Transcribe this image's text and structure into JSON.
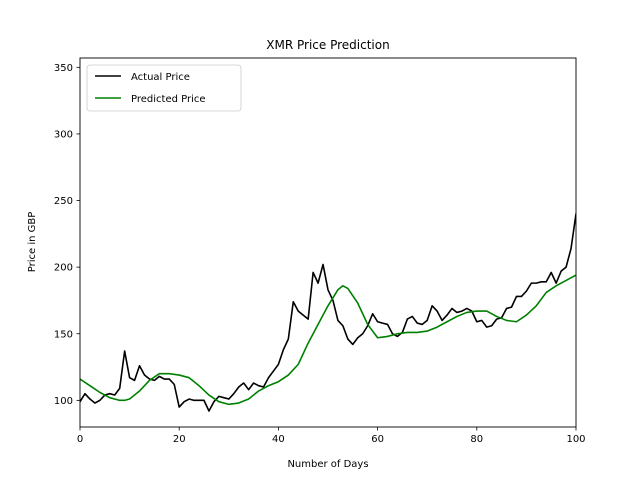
{
  "chart_data": {
    "type": "line",
    "title": "XMR Price Prediction",
    "xlabel": "Number of Days",
    "ylabel": "Price in GBP",
    "xlim": [
      0,
      100
    ],
    "ylim": [
      80,
      357
    ],
    "xticks": [
      0,
      20,
      40,
      60,
      80,
      100
    ],
    "yticks": [
      100,
      150,
      200,
      250,
      300,
      350
    ],
    "grid": false,
    "legend_position": "top-left",
    "series": [
      {
        "name": "Actual Price",
        "color": "#000000",
        "x": [
          0,
          1,
          2,
          3,
          4,
          5,
          6,
          7,
          8,
          9,
          10,
          11,
          12,
          13,
          14,
          15,
          16,
          17,
          18,
          19,
          20,
          21,
          22,
          23,
          24,
          25,
          26,
          27,
          28,
          29,
          30,
          31,
          32,
          33,
          34,
          35,
          36,
          37,
          38,
          39,
          40,
          41,
          42,
          43,
          44,
          45,
          46,
          47,
          48,
          49,
          50,
          51,
          52,
          53,
          54,
          55,
          56,
          57,
          58,
          59,
          60,
          61,
          62,
          63,
          64,
          65,
          66,
          67,
          68,
          69,
          70,
          71,
          72,
          73,
          74,
          75,
          76,
          77,
          78,
          79,
          80,
          81,
          82,
          83,
          84,
          85,
          86,
          87,
          88,
          89,
          90,
          91,
          92,
          93,
          94,
          95,
          96,
          97,
          98,
          99,
          100
        ],
        "y": [
          99,
          105,
          101,
          98,
          100,
          104,
          105,
          104,
          109,
          137,
          117,
          115,
          126,
          119,
          116,
          115,
          118,
          116,
          116,
          112,
          95,
          99,
          101,
          100,
          100,
          100,
          92,
          99,
          103,
          102,
          101,
          105,
          110,
          113,
          108,
          113,
          111,
          110,
          117,
          122,
          127,
          138,
          146,
          174,
          167,
          164,
          161,
          196,
          188,
          202,
          183,
          175,
          160,
          156,
          146,
          142,
          147,
          150,
          156,
          165,
          159,
          158,
          157,
          150,
          148,
          151,
          161,
          163,
          158,
          157,
          160,
          171,
          167,
          160,
          164,
          169,
          166,
          167,
          169,
          167,
          159,
          160,
          155,
          156,
          161,
          162,
          169,
          170,
          178,
          178,
          182,
          188,
          188,
          189,
          189,
          196,
          188,
          197,
          200,
          214,
          240
        ]
      },
      {
        "name": "Predicted Price",
        "color": "#008000",
        "x": [
          0,
          2,
          4,
          6,
          8,
          9,
          10,
          12,
          14,
          16,
          18,
          20,
          22,
          24,
          26,
          28,
          30,
          32,
          34,
          36,
          38,
          40,
          42,
          44,
          46,
          48,
          50,
          52,
          53,
          54,
          56,
          58,
          60,
          62,
          64,
          66,
          68,
          70,
          72,
          74,
          76,
          78,
          80,
          82,
          84,
          86,
          88,
          90,
          92,
          94,
          96,
          98,
          100
        ],
        "y": [
          116,
          111,
          106,
          102,
          100,
          100,
          101,
          107,
          115,
          120,
          120,
          119,
          117,
          111,
          104,
          99,
          97,
          98,
          101,
          107,
          111,
          114,
          119,
          127,
          143,
          157,
          171,
          183,
          186,
          184,
          173,
          157,
          147,
          148,
          150,
          151,
          151,
          152,
          155,
          159,
          163,
          166,
          167,
          167,
          163,
          160,
          159,
          164,
          171,
          181,
          186,
          190,
          194
        ]
      }
    ]
  }
}
